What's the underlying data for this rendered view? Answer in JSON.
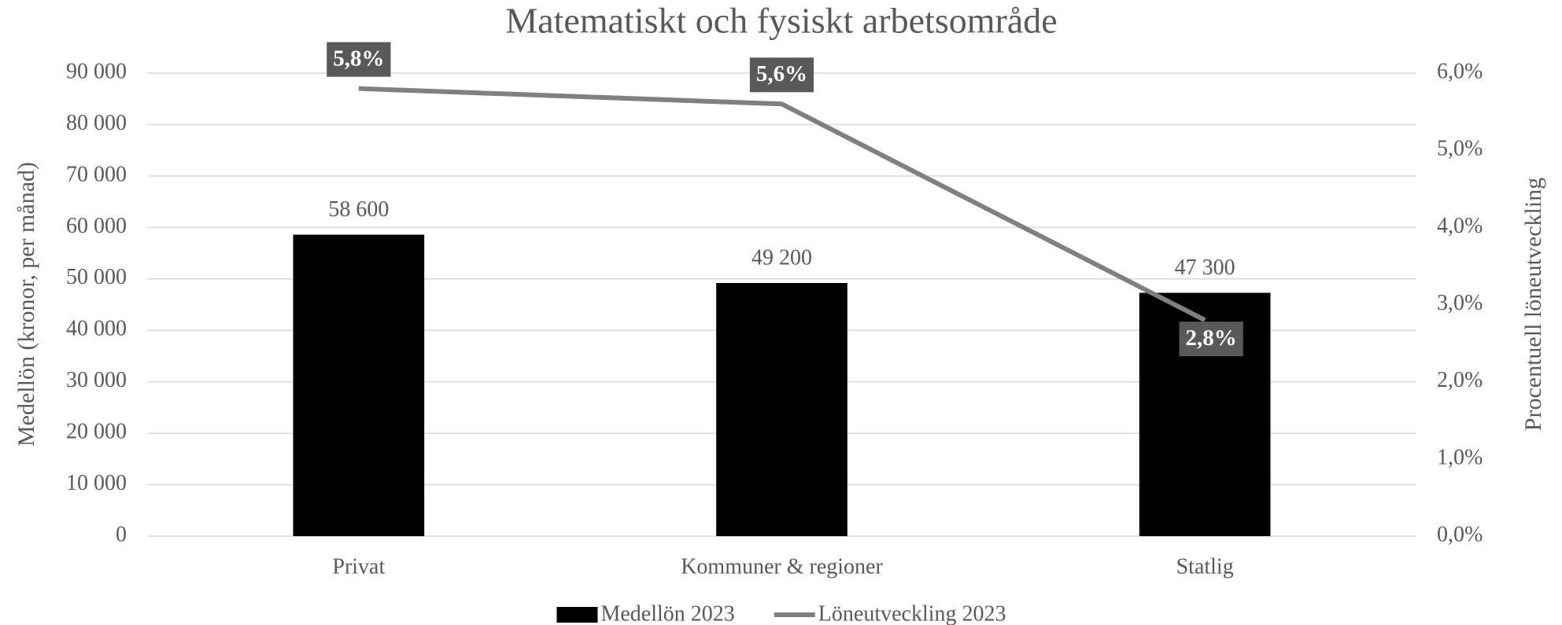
{
  "chart_data": {
    "type": "bar_line",
    "title": "Matematiskt och fysiskt arbetsområde",
    "y_label": "Medellön (kronor, per månad)",
    "y2_label": "Procentuell löneutveckling",
    "categories": [
      "Privat",
      "Kommuner & regioner",
      "Statlig"
    ],
    "series": [
      {
        "name": "Medellön 2023",
        "type": "bar",
        "color": "#000000",
        "values": [
          58600,
          49200,
          47300
        ],
        "value_labels": [
          "58 600",
          "49 200",
          "47 300"
        ]
      },
      {
        "name": "Löneutveckling 2023",
        "type": "line",
        "axis": "y2",
        "color": "#808080",
        "values": [
          5.8,
          5.6,
          2.8
        ],
        "value_labels": [
          "5,8%",
          "5,6%",
          "2,8%"
        ]
      }
    ],
    "ylim": [
      0,
      90000
    ],
    "yticks": [
      0,
      {
        "value": 10000,
        "label": "10 000"
      },
      {
        "value": 20000,
        "label": "20 000"
      },
      {
        "value": 30000,
        "label": "30 000"
      },
      {
        "value": 40000,
        "label": "40 000"
      },
      {
        "value": 50000,
        "label": "50 000"
      },
      {
        "value": 60000,
        "label": "60 000"
      },
      {
        "value": 70000,
        "label": "70 000"
      },
      {
        "value": 80000,
        "label": "80 000"
      },
      {
        "value": 90000,
        "label": "90 000"
      }
    ],
    "y2lim": [
      0,
      6
    ],
    "y2ticks": [
      {
        "value": 0,
        "label": "0,0%"
      },
      {
        "value": 1,
        "label": "1,0%"
      },
      {
        "value": 2,
        "label": "2,0%"
      },
      {
        "value": 3,
        "label": "3,0%"
      },
      {
        "value": 4,
        "label": "4,0%"
      },
      {
        "value": 5,
        "label": "5,0%"
      },
      {
        "value": 6,
        "label": "6,0%"
      }
    ],
    "grid": true,
    "legend": "bottom"
  }
}
